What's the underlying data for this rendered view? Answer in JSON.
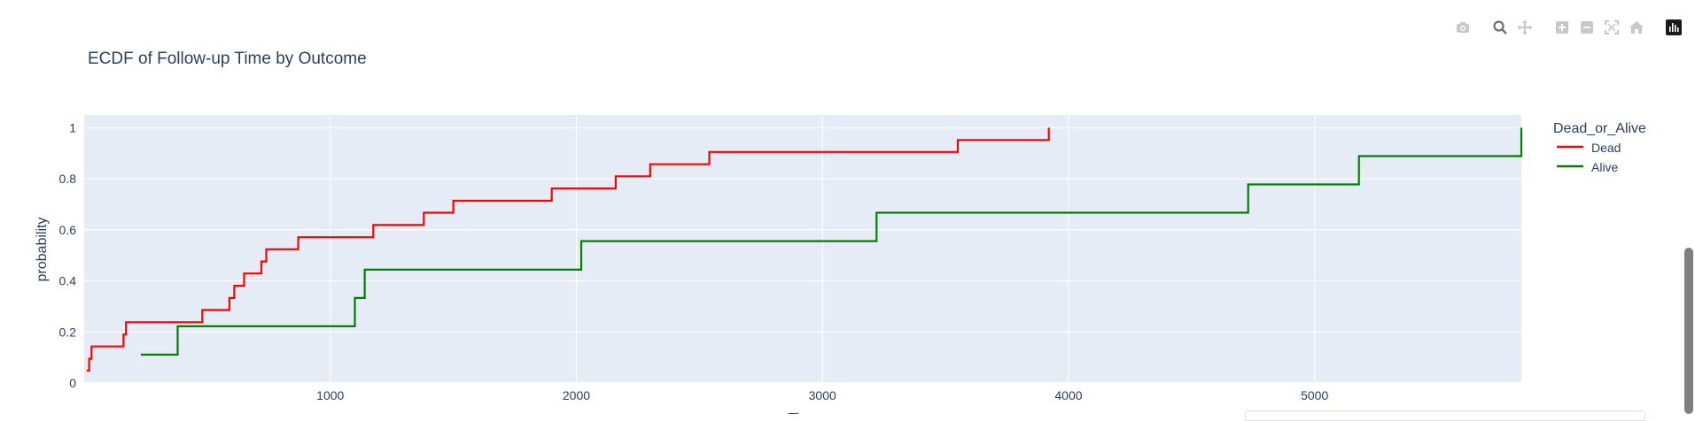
{
  "modebar": {
    "buttons": [
      {
        "name": "camera-icon",
        "tooltip": "Download plot as a png"
      },
      {
        "name": "zoom-icon",
        "tooltip": "Zoom"
      },
      {
        "name": "pan-icon",
        "tooltip": "Pan"
      },
      {
        "name": "zoom-in-icon",
        "tooltip": "Zoom in"
      },
      {
        "name": "zoom-out-icon",
        "tooltip": "Zoom out"
      },
      {
        "name": "autoscale-icon",
        "tooltip": "Autoscale"
      },
      {
        "name": "reset-axes-icon",
        "tooltip": "Reset axes"
      },
      {
        "name": "plotly-logo-icon",
        "tooltip": "Produced with Plotly"
      }
    ]
  },
  "chart_data": {
    "type": "line",
    "line_shape": "step",
    "title": "ECDF of Follow-up Time by Outcome",
    "xlabel": "Ti",
    "ylabel": "probability",
    "xlim": [
      0,
      5840
    ],
    "ylim": [
      0,
      1.05
    ],
    "x_ticks": [
      1000,
      2000,
      3000,
      4000,
      5000
    ],
    "y_ticks": [
      0,
      0.2,
      0.4,
      0.6,
      0.8,
      1
    ],
    "y_tick_labels": [
      "0",
      "0.2",
      "0.4",
      "0.6",
      "0.8",
      "1"
    ],
    "grid": true,
    "plot_bgcolor": "#E5ECF6",
    "legend": {
      "title": "Dead_or_Alive",
      "placement": "right"
    },
    "series": [
      {
        "name": "Dead",
        "color": "#ff0000",
        "x": [
          10,
          20,
          30,
          160,
          170,
          480,
          590,
          610,
          650,
          720,
          740,
          800,
          870,
          1175,
          1380,
          1500,
          1900,
          2160,
          2300,
          2540,
          3550,
          3920
        ],
        "y": [
          0.048,
          0.095,
          0.143,
          0.19,
          0.238,
          0.286,
          0.333,
          0.381,
          0.429,
          0.476,
          0.524,
          0.524,
          0.571,
          0.619,
          0.667,
          0.714,
          0.762,
          0.81,
          0.857,
          0.905,
          0.952,
          1.0
        ]
      },
      {
        "name": "Alive",
        "color": "#008000",
        "x": [
          230,
          380,
          1100,
          1140,
          2020,
          3220,
          4730,
          5180,
          5840
        ],
        "y": [
          0.111,
          0.222,
          0.333,
          0.444,
          0.556,
          0.667,
          0.778,
          0.889,
          1.0
        ]
      }
    ]
  }
}
